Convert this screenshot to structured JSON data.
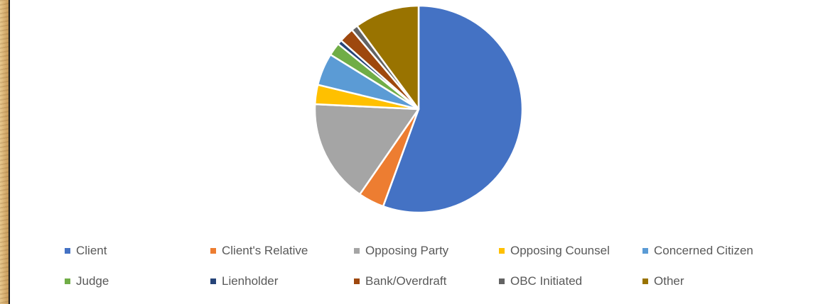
{
  "chart_data": {
    "type": "pie",
    "title": "",
    "legend_position": "bottom",
    "slices": [
      {
        "label": "Client",
        "value": 55,
        "color": "#4472C4"
      },
      {
        "label": "Client's Relative",
        "value": 4,
        "color": "#ED7D31"
      },
      {
        "label": "Opposing Party",
        "value": 16,
        "color": "#A5A5A5"
      },
      {
        "label": "Opposing Counsel",
        "value": 3,
        "color": "#FFC000"
      },
      {
        "label": "Concerned Citizen",
        "value": 5,
        "color": "#5B9BD5"
      },
      {
        "label": "Judge",
        "value": 2,
        "color": "#70AD47"
      },
      {
        "label": "Lienholder",
        "value": 0.7,
        "color": "#264478"
      },
      {
        "label": "Bank/Overdraft",
        "value": 2.3,
        "color": "#9E480E"
      },
      {
        "label": "OBC Initiated",
        "value": 1,
        "color": "#636363"
      },
      {
        "label": "Other",
        "value": 10,
        "color": "#997300"
      }
    ]
  }
}
